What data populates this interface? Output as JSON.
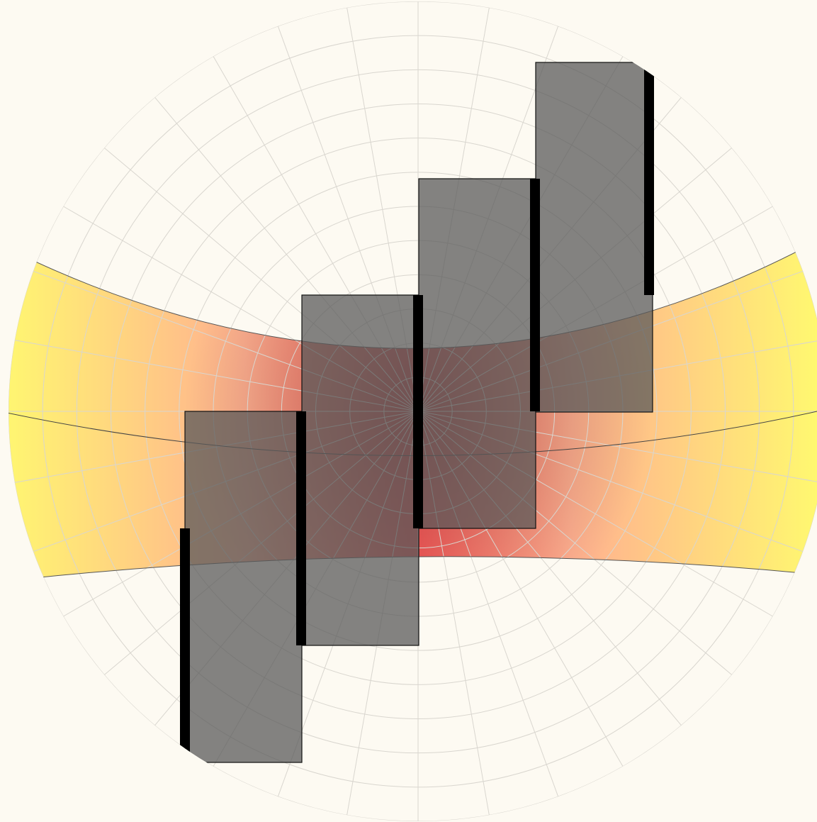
{
  "colors": {
    "background": "#fdfaf2",
    "grid": "#d9d6cf",
    "band_edge": "#fff870",
    "band_center": "#ff5a5a",
    "block_fill": "#5a5a5a",
    "bar": "#000000"
  },
  "grid": {
    "rings": 12,
    "spokes": 36
  },
  "blocks": [
    {
      "id": "block-1",
      "step": 1
    },
    {
      "id": "block-2",
      "step": 2
    },
    {
      "id": "block-3",
      "step": 3
    },
    {
      "id": "block-4",
      "step": 4
    },
    {
      "id": "block-5",
      "step": 5
    }
  ]
}
